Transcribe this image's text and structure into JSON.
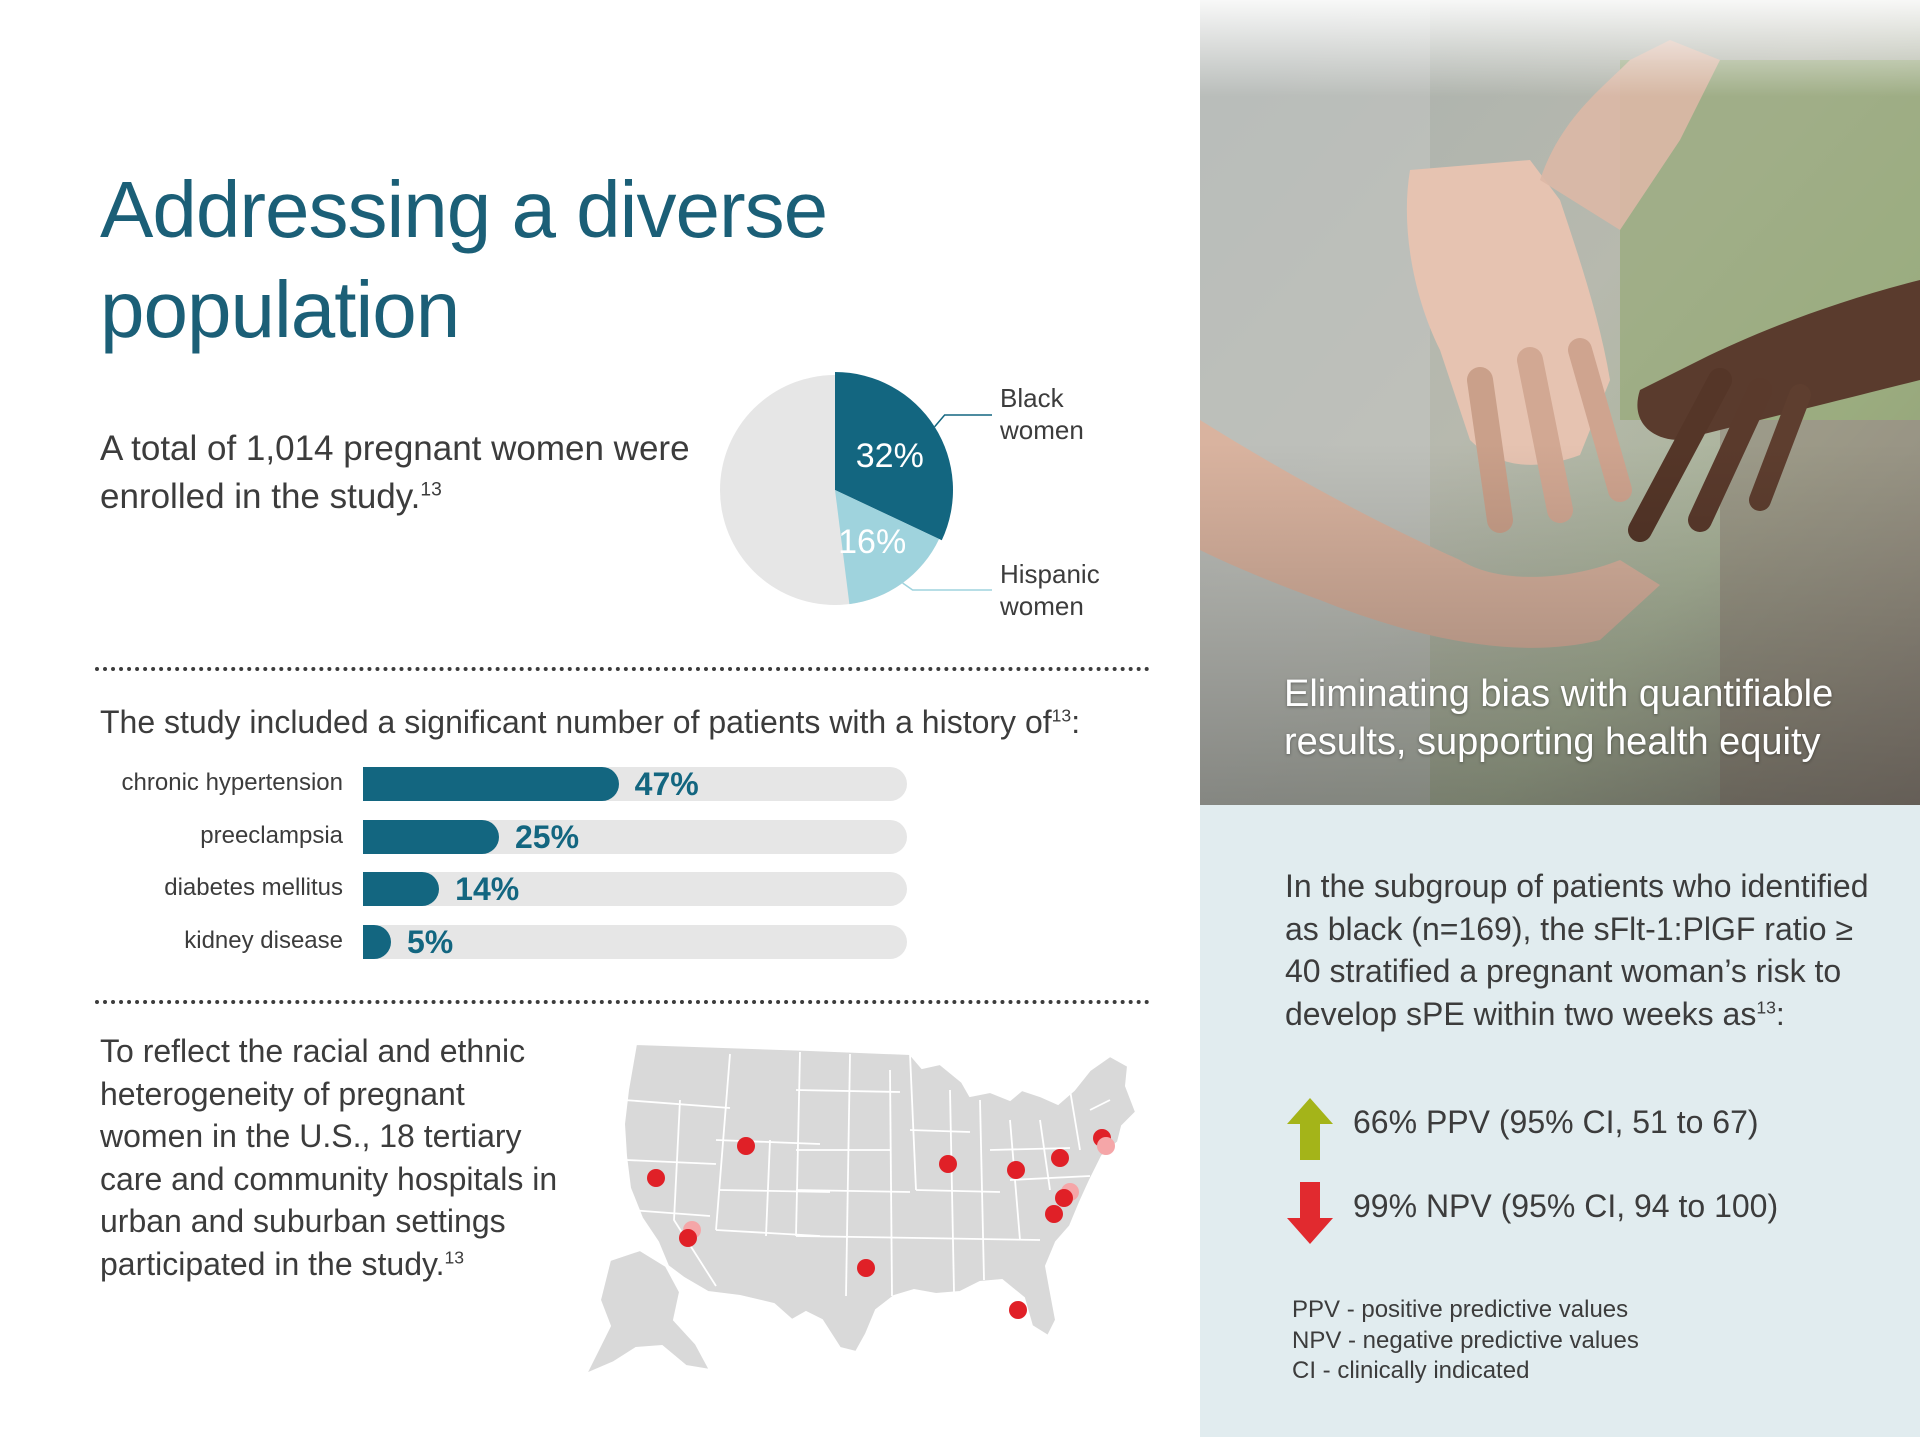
{
  "title": "Addressing a diverse population",
  "intro": {
    "text": "A total of 1,014 pregnant women were enrolled in the study.",
    "ref": "13"
  },
  "chart_data": [
    {
      "type": "pie",
      "slices": [
        {
          "name": "Black women",
          "value": 32,
          "label": "32%",
          "color": "#136680"
        },
        {
          "name": "Hispanic women",
          "value": 16,
          "label": "16%",
          "color": "#9fd3dd"
        },
        {
          "name": "",
          "value": 52,
          "label": "",
          "color": "#e6e6e6"
        }
      ],
      "legend_lines": {
        "black": [
          "Black",
          "women"
        ],
        "hispanic": [
          "Hispanic",
          "women"
        ]
      }
    },
    {
      "type": "bar",
      "orientation": "horizontal",
      "title": "The study included a significant number of patients with a history of",
      "title_ref": "13",
      "categories": [
        "chronic hypertension",
        "preeclampsia",
        "diabetes mellitus",
        "kidney disease"
      ],
      "values": [
        47,
        25,
        14,
        5
      ],
      "value_labels": [
        "47%",
        "25%",
        "14%",
        "5%"
      ],
      "xlim": [
        0,
        100
      ],
      "color": "#136680",
      "track_color": "#e6e6e6"
    }
  ],
  "map_section": {
    "text": "To reflect the racial and ethnic heterogeneity of pregnant women in the U.S., 18 tertiary care and community hospitals in urban and suburban settings participated in the study.",
    "ref": "13",
    "marker_color": "#e02027",
    "marker_highlight_color": "#f5a6a8",
    "map_color": "#d9d9d9"
  },
  "photo": {
    "caption": "Eliminating bias with quantifiable results, supporting health equity"
  },
  "subgroup": {
    "text": "In the subgroup of patients who identified as black (n=169), the sFlt-1:PlGF ratio ≥ 40 stratified a pregnant woman’s risk to develop sPE within two weeks as",
    "ref": "13",
    "suffix": ":"
  },
  "stats": [
    {
      "icon": "arrow-up-icon",
      "text": "66% PPV (95% CI, 51 to 67)",
      "color": "#a4b419"
    },
    {
      "icon": "arrow-down-icon",
      "text": "99% NPV (95% CI, 94 to 100)",
      "color": "#e12a2f"
    }
  ],
  "definitions": [
    "PPV - positive predictive values",
    "NPV - negative predictive values",
    "CI - clinically indicated"
  ]
}
